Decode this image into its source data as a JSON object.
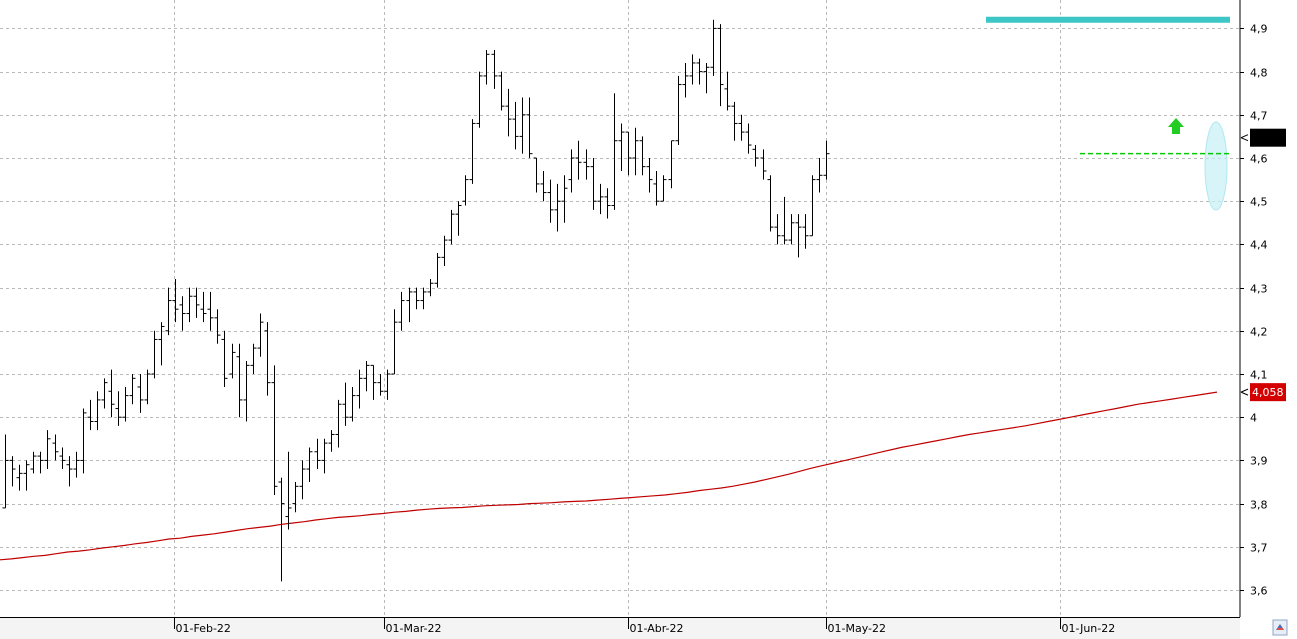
{
  "chart_data": {
    "type": "ohlc",
    "x_tick_labels": [
      "01-Feb-22",
      "01-Mar-22",
      "01-Abr-22",
      "01-May-22",
      "01-Jun-22"
    ],
    "y_tick_labels": [
      "3,6",
      "3,7",
      "3,8",
      "3,9",
      "4",
      "4,1",
      "4,2",
      "4,3",
      "4,4",
      "4,5",
      "4,6",
      "4,7",
      "4,8",
      "4,9"
    ],
    "ylim": [
      3.56,
      4.95
    ],
    "grid": true,
    "price_badge": {
      "value": null,
      "label": "",
      "color": "#000000"
    },
    "ma_badge": {
      "value": 4.058,
      "label": "4,058",
      "color": "#d40000"
    },
    "resistance_level": {
      "value": 4.92,
      "color": "#3cc6c6"
    },
    "support_level": {
      "value": 4.61,
      "color": "#00cc00"
    },
    "moving_average": {
      "color": "#c00000",
      "values": [
        3.67,
        3.672,
        3.675,
        3.678,
        3.68,
        3.684,
        3.688,
        3.69,
        3.693,
        3.697,
        3.7,
        3.703,
        3.707,
        3.71,
        3.714,
        3.718,
        3.72,
        3.724,
        3.727,
        3.73,
        3.734,
        3.738,
        3.742,
        3.745,
        3.748,
        3.752,
        3.755,
        3.758,
        3.762,
        3.765,
        3.768,
        3.77,
        3.772,
        3.775,
        3.777,
        3.78,
        3.782,
        3.785,
        3.787,
        3.789,
        3.79,
        3.791,
        3.793,
        3.795,
        3.796,
        3.797,
        3.798,
        3.8,
        3.801,
        3.802,
        3.804,
        3.805,
        3.806,
        3.808,
        3.81,
        3.812,
        3.814,
        3.816,
        3.818,
        3.82,
        3.823,
        3.826,
        3.83,
        3.833,
        3.836,
        3.84,
        3.845,
        3.85,
        3.856,
        3.862,
        3.868,
        3.875,
        3.882,
        3.888,
        3.894,
        3.9,
        3.906,
        3.912,
        3.918,
        3.924,
        3.93,
        3.935,
        3.94,
        3.945,
        3.95,
        3.955,
        3.96,
        3.964,
        3.968,
        3.972,
        3.976,
        3.98,
        3.985,
        3.99,
        3.995,
        4,
        4.005,
        4.01,
        4.015,
        4.02,
        4.025,
        4.03,
        4.034,
        4.038,
        4.042,
        4.046,
        4.05,
        4.054,
        4.058
      ]
    },
    "series": [
      {
        "name": "",
        "type": "ohlc",
        "ohlc": [
          [
            3.79,
            3.96,
            3.79,
            3.9
          ],
          [
            3.9,
            3.91,
            3.84,
            3.88
          ],
          [
            3.86,
            3.89,
            3.83,
            3.87
          ],
          [
            3.87,
            3.9,
            3.83,
            3.89
          ],
          [
            3.88,
            3.92,
            3.87,
            3.91
          ],
          [
            3.91,
            3.92,
            3.87,
            3.9
          ],
          [
            3.9,
            3.97,
            3.88,
            3.95
          ],
          [
            3.94,
            3.96,
            3.9,
            3.92
          ],
          [
            3.91,
            3.93,
            3.88,
            3.9
          ],
          [
            3.89,
            3.91,
            3.84,
            3.88
          ],
          [
            3.88,
            3.92,
            3.86,
            3.9
          ],
          [
            3.9,
            4.02,
            3.87,
            4.01
          ],
          [
            4.0,
            4.04,
            3.97,
            3.99
          ],
          [
            3.99,
            4.06,
            3.97,
            4.04
          ],
          [
            4.04,
            4.09,
            4.02,
            4.08
          ],
          [
            4.06,
            4.11,
            4.0,
            4.03
          ],
          [
            4.02,
            4.06,
            3.98,
            4.0
          ],
          [
            4.0,
            4.07,
            3.99,
            4.05
          ],
          [
            4.05,
            4.1,
            4.03,
            4.09
          ],
          [
            4.07,
            4.1,
            4.01,
            4.04
          ],
          [
            4.04,
            4.11,
            4.03,
            4.1
          ],
          [
            4.1,
            4.2,
            4.09,
            4.18
          ],
          [
            4.18,
            4.22,
            4.12,
            4.21
          ],
          [
            4.2,
            4.3,
            4.19,
            4.27
          ],
          [
            4.27,
            4.32,
            4.22,
            4.25
          ],
          [
            4.26,
            4.28,
            4.2,
            4.24
          ],
          [
            4.24,
            4.3,
            4.22,
            4.28
          ],
          [
            4.28,
            4.3,
            4.23,
            4.26
          ],
          [
            4.25,
            4.29,
            4.22,
            4.24
          ],
          [
            4.25,
            4.29,
            4.2,
            4.23
          ],
          [
            4.23,
            4.25,
            4.17,
            4.19
          ],
          [
            4.18,
            4.2,
            4.07,
            4.09
          ],
          [
            4.1,
            4.17,
            4.09,
            4.15
          ],
          [
            4.14,
            4.17,
            4.0,
            4.04
          ],
          [
            4.04,
            4.13,
            3.99,
            4.12
          ],
          [
            4.12,
            4.17,
            4.1,
            4.16
          ],
          [
            4.16,
            4.24,
            4.14,
            4.22
          ],
          [
            4.2,
            4.22,
            4.05,
            4.08
          ],
          [
            4.08,
            4.12,
            3.82,
            3.84
          ],
          [
            3.85,
            3.86,
            3.62,
            3.8
          ],
          [
            3.77,
            3.92,
            3.74,
            3.79
          ],
          [
            3.8,
            3.85,
            3.78,
            3.84
          ],
          [
            3.84,
            3.9,
            3.81,
            3.88
          ],
          [
            3.88,
            3.93,
            3.85,
            3.92
          ],
          [
            3.92,
            3.95,
            3.88,
            3.9
          ],
          [
            3.9,
            3.95,
            3.87,
            3.94
          ],
          [
            3.94,
            3.97,
            3.92,
            3.96
          ],
          [
            3.96,
            4.04,
            3.93,
            4.03
          ],
          [
            4.03,
            4.08,
            3.98,
            4.0
          ],
          [
            4.0,
            4.07,
            3.99,
            4.05
          ],
          [
            4.05,
            4.11,
            4.02,
            4.09
          ],
          [
            4.09,
            4.13,
            4.06,
            4.12
          ],
          [
            4.12,
            4.12,
            4.04,
            4.08
          ],
          [
            4.08,
            4.1,
            4.05,
            4.06
          ],
          [
            4.06,
            4.11,
            4.04,
            4.1
          ],
          [
            4.1,
            4.25,
            4.1,
            4.22
          ],
          [
            4.22,
            4.29,
            4.2,
            4.27
          ],
          [
            4.27,
            4.3,
            4.22,
            4.29
          ],
          [
            4.29,
            4.3,
            4.25,
            4.27
          ],
          [
            4.27,
            4.3,
            4.25,
            4.29
          ],
          [
            4.29,
            4.32,
            4.28,
            4.31
          ],
          [
            4.31,
            4.38,
            4.3,
            4.37
          ],
          [
            4.37,
            4.42,
            4.35,
            4.41
          ],
          [
            4.41,
            4.48,
            4.4,
            4.47
          ],
          [
            4.47,
            4.5,
            4.42,
            4.49
          ],
          [
            4.5,
            4.56,
            4.49,
            4.55
          ],
          [
            4.55,
            4.69,
            4.54,
            4.68
          ],
          [
            4.68,
            4.8,
            4.67,
            4.79
          ],
          [
            4.79,
            4.85,
            4.77,
            4.84
          ],
          [
            4.84,
            4.85,
            4.76,
            4.79
          ],
          [
            4.79,
            4.8,
            4.71,
            4.72
          ],
          [
            4.72,
            4.76,
            4.65,
            4.69
          ],
          [
            4.69,
            4.73,
            4.62,
            4.65
          ],
          [
            4.65,
            4.74,
            4.61,
            4.7
          ],
          [
            4.7,
            4.74,
            4.6,
            4.61
          ],
          [
            4.6,
            4.6,
            4.52,
            4.54
          ],
          [
            4.54,
            4.57,
            4.5,
            4.52
          ],
          [
            4.52,
            4.55,
            4.45,
            4.48
          ],
          [
            4.48,
            4.54,
            4.43,
            4.5
          ],
          [
            4.5,
            4.56,
            4.45,
            4.53
          ],
          [
            4.55,
            4.62,
            4.52,
            4.6
          ],
          [
            4.6,
            4.64,
            4.55,
            4.59
          ],
          [
            4.59,
            4.62,
            4.55,
            4.58
          ],
          [
            4.58,
            4.6,
            4.48,
            4.5
          ],
          [
            4.5,
            4.54,
            4.47,
            4.51
          ],
          [
            4.51,
            4.53,
            4.46,
            4.49
          ],
          [
            4.49,
            4.75,
            4.48,
            4.64
          ],
          [
            4.64,
            4.68,
            4.57,
            4.66
          ],
          [
            4.66,
            4.66,
            4.56,
            4.6
          ],
          [
            4.6,
            4.67,
            4.56,
            4.64
          ],
          [
            4.64,
            4.65,
            4.56,
            4.58
          ],
          [
            4.58,
            4.6,
            4.52,
            4.55
          ],
          [
            4.54,
            4.57,
            4.49,
            4.5
          ],
          [
            4.5,
            4.56,
            4.5,
            4.55
          ],
          [
            4.55,
            4.64,
            4.53,
            4.64
          ],
          [
            4.64,
            4.79,
            4.63,
            4.77
          ],
          [
            4.77,
            4.82,
            4.74,
            4.79
          ],
          [
            4.79,
            4.84,
            4.77,
            4.82
          ],
          [
            4.82,
            4.83,
            4.77,
            4.8
          ],
          [
            4.8,
            4.82,
            4.75,
            4.81
          ],
          [
            4.81,
            4.92,
            4.79,
            4.9
          ],
          [
            4.9,
            4.91,
            4.72,
            4.77
          ],
          [
            4.76,
            4.8,
            4.71,
            4.72
          ],
          [
            4.72,
            4.73,
            4.64,
            4.68
          ],
          [
            4.68,
            4.7,
            4.64,
            4.66
          ],
          [
            4.66,
            4.68,
            4.61,
            4.63
          ],
          [
            4.62,
            4.63,
            4.58,
            4.6
          ],
          [
            4.6,
            4.62,
            4.55,
            4.57
          ],
          [
            4.55,
            4.56,
            4.43,
            4.44
          ],
          [
            4.44,
            4.47,
            4.4,
            4.42
          ],
          [
            4.42,
            4.51,
            4.4,
            4.41
          ],
          [
            4.41,
            4.47,
            4.4,
            4.45
          ],
          [
            4.45,
            4.47,
            4.37,
            4.44
          ],
          [
            4.44,
            4.47,
            4.39,
            4.42
          ],
          [
            4.42,
            4.56,
            4.42,
            4.55
          ],
          [
            4.55,
            4.6,
            4.52,
            4.56
          ],
          [
            4.56,
            4.64,
            4.55,
            4.61
          ]
        ]
      }
    ]
  }
}
